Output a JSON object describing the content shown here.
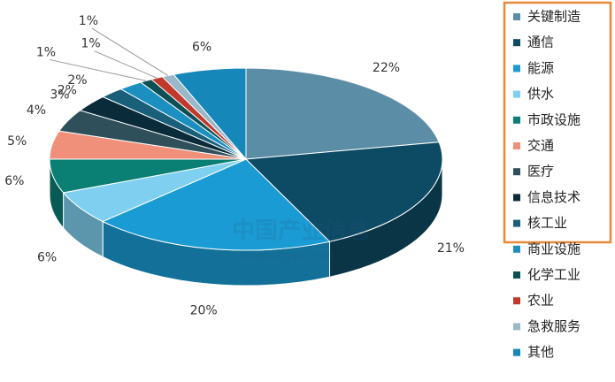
{
  "chart_data": {
    "type": "pie3d",
    "categories": [
      "关键制造",
      "通信",
      "能源",
      "供水",
      "市政设施",
      "交通",
      "医疗",
      "信息技术",
      "核工业",
      "商业设施",
      "化学工业",
      "农业",
      "急救服务",
      "其他"
    ],
    "values": [
      22,
      21,
      20,
      6,
      6,
      5,
      4,
      3,
      2,
      2,
      1,
      1,
      1,
      6
    ],
    "value_labels": [
      "22%",
      "21%",
      "20%",
      "6%",
      "6%",
      "5%",
      "4%",
      "3%",
      "2%",
      "2%",
      "1%",
      "1%",
      "1%",
      "6%"
    ],
    "colors": [
      "#5b8ea6",
      "#0d4a63",
      "#1a9bd3",
      "#7fd0f0",
      "#0a7f74",
      "#f0907a",
      "#2f4f5a",
      "#0a2b3a",
      "#1a5f7a",
      "#1b8fc0",
      "#0c4f54",
      "#c0392b",
      "#9ab8c8",
      "#1587b8"
    ],
    "legend": "right",
    "watermark": [
      "中国产业信息",
      "www.chyxx.com"
    ]
  }
}
